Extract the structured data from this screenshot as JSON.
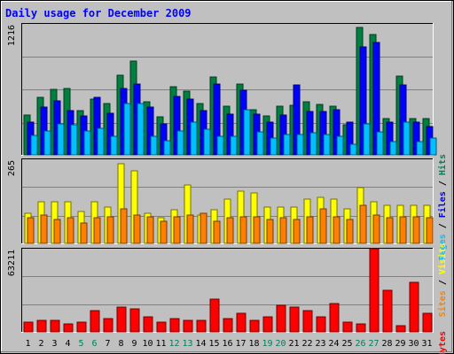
{
  "chart_data": {
    "type": "bar",
    "title": "Daily usage for December 2009",
    "categories": [
      "1",
      "2",
      "3",
      "4",
      "5",
      "6",
      "7",
      "8",
      "9",
      "10",
      "11",
      "12",
      "13",
      "14",
      "15",
      "16",
      "17",
      "18",
      "19",
      "20",
      "21",
      "22",
      "23",
      "24",
      "25",
      "26",
      "27",
      "28",
      "29",
      "30",
      "31"
    ],
    "weekend_days": [
      "5",
      "6",
      "12",
      "13",
      "19",
      "20",
      "26",
      "27"
    ],
    "panels": [
      {
        "name": "hits_files_pages",
        "ymax": 1216,
        "ymax_label": "1216",
        "legend": [
          {
            "label": "Hits",
            "color": "#00805c"
          },
          {
            "label": "Files",
            "color": "#0000ff"
          },
          {
            "label": "Pages",
            "color": "#00c0ff"
          }
        ],
        "series": [
          {
            "name": "Hits",
            "color": "#008040",
            "values": [
              370,
              530,
              610,
              620,
              410,
              520,
              475,
              740,
              870,
              490,
              350,
              630,
              590,
              475,
              720,
              450,
              660,
              420,
              360,
              450,
              460,
              490,
              465,
              450,
              280,
              1180,
              1120,
              335,
              735,
              340,
              335
            ]
          },
          {
            "name": "Files",
            "color": "#0000ff",
            "values": [
              300,
              440,
              500,
              410,
              360,
              530,
              390,
              620,
              660,
              440,
              290,
              540,
              520,
              410,
              660,
              380,
              600,
              380,
              300,
              370,
              650,
              400,
              400,
              420,
              300,
              1000,
              1045,
              300,
              650,
              300,
              265
            ]
          },
          {
            "name": "Pages",
            "color": "#00c0ff",
            "values": [
              180,
              220,
              285,
              280,
              225,
              250,
              175,
              480,
              475,
              170,
              130,
              220,
              300,
              240,
              175,
              175,
              415,
              210,
              160,
              190,
              190,
              205,
              190,
              175,
              100,
              285,
              215,
              120,
              305,
              120,
              155
            ]
          }
        ]
      },
      {
        "name": "visits_sites",
        "ymax": 265,
        "ymax_label": "265",
        "legend": [
          {
            "label": "Visits",
            "color": "#ffff00"
          },
          {
            "label": "Sites",
            "color": "#ff8000"
          }
        ],
        "series": [
          {
            "name": "Visits",
            "color": "#ffff00",
            "values": [
              95,
              130,
              130,
              130,
              100,
              130,
              115,
              250,
              230,
              95,
              80,
              105,
              185,
              90,
              105,
              140,
              165,
              160,
              115,
              115,
              115,
              140,
              145,
              140,
              110,
              175,
              130,
              120,
              120,
              120,
              120
            ]
          },
          {
            "name": "Sites",
            "color": "#ff8000",
            "values": [
              80,
              90,
              75,
              80,
              65,
              80,
              85,
              110,
              90,
              85,
              70,
              85,
              90,
              95,
              70,
              80,
              85,
              85,
              75,
              80,
              75,
              85,
              110,
              85,
              75,
              120,
              90,
              80,
              85,
              85,
              80
            ]
          }
        ]
      },
      {
        "name": "kbytes",
        "ymax": 63211,
        "ymax_label": "63211",
        "legend": [
          {
            "label": "KBytes",
            "color": "#ff0000"
          }
        ],
        "series": [
          {
            "name": "KBytes",
            "color": "#ff0000",
            "values": [
              7600,
              8800,
              8800,
              6300,
              7200,
              16400,
              10100,
              18900,
              17400,
              11400,
              7600,
              10100,
              8800,
              8800,
              25200,
              10100,
              13900,
              8800,
              11400,
              20200,
              19000,
              16400,
              11400,
              21500,
              7600,
              6300,
              63211,
              31600,
              5000,
              37900,
              13900
            ]
          }
        ]
      }
    ]
  }
}
